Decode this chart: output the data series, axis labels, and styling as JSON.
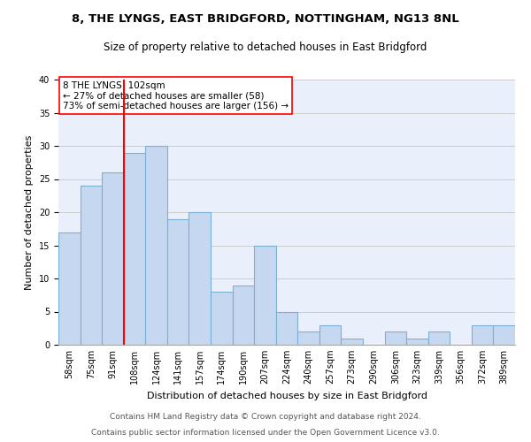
{
  "title1": "8, THE LYNGS, EAST BRIDGFORD, NOTTINGHAM, NG13 8NL",
  "title2": "Size of property relative to detached houses in East Bridgford",
  "xlabel": "Distribution of detached houses by size in East Bridgford",
  "ylabel": "Number of detached properties",
  "categories": [
    "58sqm",
    "75sqm",
    "91sqm",
    "108sqm",
    "124sqm",
    "141sqm",
    "157sqm",
    "174sqm",
    "190sqm",
    "207sqm",
    "224sqm",
    "240sqm",
    "257sqm",
    "273sqm",
    "290sqm",
    "306sqm",
    "323sqm",
    "339sqm",
    "356sqm",
    "372sqm",
    "389sqm"
  ],
  "values": [
    17,
    24,
    26,
    29,
    30,
    19,
    20,
    8,
    9,
    15,
    5,
    2,
    3,
    1,
    0,
    2,
    1,
    2,
    0,
    3,
    3
  ],
  "bar_color": "#c5d8f0",
  "bar_edge_color": "#7bafd4",
  "annotation_text": "8 THE LYNGS: 102sqm\n← 27% of detached houses are smaller (58)\n73% of semi-detached houses are larger (156) →",
  "annotation_box_color": "white",
  "annotation_box_edge_color": "red",
  "vline_color": "red",
  "vline_x_index": 2,
  "ylim": [
    0,
    40
  ],
  "yticks": [
    0,
    5,
    10,
    15,
    20,
    25,
    30,
    35,
    40
  ],
  "grid_color": "#cccccc",
  "bg_color": "#eaf0fb",
  "footer1": "Contains HM Land Registry data © Crown copyright and database right 2024.",
  "footer2": "Contains public sector information licensed under the Open Government Licence v3.0.",
  "title1_fontsize": 9.5,
  "title2_fontsize": 8.5,
  "xlabel_fontsize": 8,
  "ylabel_fontsize": 8,
  "tick_fontsize": 7,
  "footer_fontsize": 6.5,
  "annotation_fontsize": 7.5
}
